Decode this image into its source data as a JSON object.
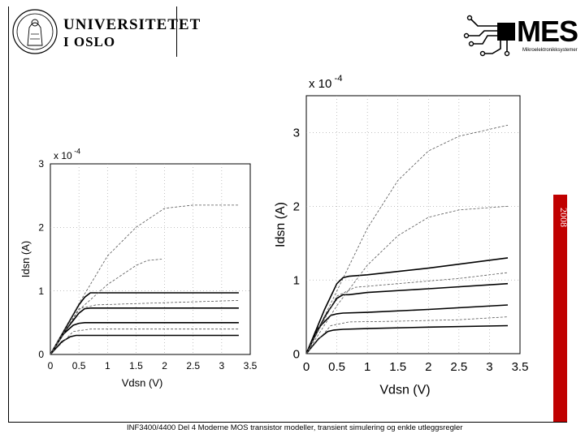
{
  "header": {
    "uio_line1": "UNIVERSITETET",
    "uio_line2": "I OSLO",
    "mes_logo": "MES",
    "mes_subtitle": "Mikroelektronikksystemer",
    "seal_icon": "university-seal-icon",
    "circuit_icon": "circuit-chip-icon"
  },
  "year": "2008",
  "footer_text": "INF3400/4400 Del 4 Moderne MOS transistor modeller, transient simulering og enkle utleggsregler",
  "colors": {
    "band": "#c00000",
    "curve": "#000000",
    "dashed": "#555555",
    "grid": "#9a9a9a"
  },
  "chart_data": [
    {
      "type": "line",
      "title": "",
      "xlabel": "Vdsn (V)",
      "ylabel": "Idsn (A)",
      "scale_label": "x 10",
      "scale_exponent": "-4",
      "xlim": [
        0,
        3.5
      ],
      "ylim": [
        0,
        3
      ],
      "xticks": [
        "0",
        "0.5",
        "1",
        "1.5",
        "2",
        "2.5",
        "3",
        "3.5"
      ],
      "yticks": [
        "0",
        "1",
        "2",
        "3"
      ],
      "grid": true,
      "series": [
        {
          "style": "solid",
          "x": [
            0,
            0.3,
            0.5,
            0.6,
            0.7,
            1.0,
            2.0,
            3.3
          ],
          "y": [
            0,
            0.47,
            0.78,
            0.9,
            0.97,
            0.97,
            0.97,
            0.97
          ]
        },
        {
          "style": "solid",
          "x": [
            0,
            0.3,
            0.5,
            0.6,
            0.7,
            1.0,
            2.0,
            3.3
          ],
          "y": [
            0,
            0.42,
            0.65,
            0.72,
            0.73,
            0.73,
            0.73,
            0.73
          ]
        },
        {
          "style": "solid",
          "x": [
            0,
            0.2,
            0.4,
            0.5,
            0.6,
            1.0,
            2.0,
            3.3
          ],
          "y": [
            0,
            0.3,
            0.46,
            0.49,
            0.5,
            0.5,
            0.5,
            0.5
          ]
        },
        {
          "style": "solid",
          "x": [
            0,
            0.2,
            0.35,
            0.45,
            0.6,
            1.0,
            2.0,
            3.3
          ],
          "y": [
            0,
            0.2,
            0.28,
            0.3,
            0.3,
            0.3,
            0.3,
            0.3
          ]
        },
        {
          "style": "dashed",
          "x": [
            0,
            0.5,
            1.0,
            1.5,
            2.0,
            2.5,
            3.3
          ],
          "y": [
            0,
            0.8,
            1.55,
            2.0,
            2.3,
            2.35,
            2.35
          ]
        },
        {
          "style": "dashed",
          "x": [
            0,
            0.5,
            1.0,
            1.5,
            1.7,
            1.95
          ],
          "y": [
            0,
            0.7,
            1.1,
            1.4,
            1.48,
            1.5
          ]
        },
        {
          "style": "dashed",
          "x": [
            0,
            0.5,
            0.8,
            1.5,
            3.3
          ],
          "y": [
            0,
            0.72,
            0.78,
            0.8,
            0.85
          ]
        },
        {
          "style": "dashed",
          "x": [
            0,
            0.4,
            0.7,
            1.5,
            3.3
          ],
          "y": [
            0,
            0.36,
            0.4,
            0.4,
            0.4
          ]
        }
      ]
    },
    {
      "type": "line",
      "title": "",
      "xlabel": "Vdsn (V)",
      "ylabel": "Idsn (A)",
      "scale_label": "x 10",
      "scale_exponent": "-4",
      "xlim": [
        0,
        3.5
      ],
      "ylim": [
        0,
        3.5
      ],
      "xticks": [
        "0",
        "0.5",
        "1",
        "1.5",
        "2",
        "2.5",
        "3",
        "3.5"
      ],
      "yticks": [
        "0",
        "1",
        "2",
        "3"
      ],
      "grid": true,
      "series": [
        {
          "style": "solid",
          "x": [
            0,
            0.3,
            0.5,
            0.6,
            0.7,
            1.0,
            2.0,
            3.3
          ],
          "y": [
            0,
            0.6,
            0.95,
            1.03,
            1.05,
            1.07,
            1.16,
            1.3
          ]
        },
        {
          "style": "solid",
          "x": [
            0,
            0.3,
            0.5,
            0.6,
            0.7,
            1.0,
            2.0,
            3.3
          ],
          "y": [
            0,
            0.5,
            0.75,
            0.8,
            0.8,
            0.83,
            0.88,
            0.95
          ]
        },
        {
          "style": "solid",
          "x": [
            0,
            0.2,
            0.4,
            0.5,
            0.6,
            1.0,
            2.0,
            3.3
          ],
          "y": [
            0,
            0.35,
            0.52,
            0.54,
            0.55,
            0.56,
            0.6,
            0.66
          ]
        },
        {
          "style": "solid",
          "x": [
            0,
            0.2,
            0.35,
            0.45,
            0.6,
            1.0,
            2.0,
            3.3
          ],
          "y": [
            0,
            0.2,
            0.3,
            0.32,
            0.33,
            0.34,
            0.36,
            0.38
          ]
        },
        {
          "style": "dashed",
          "x": [
            0,
            0.5,
            1.0,
            1.5,
            2.0,
            2.5,
            3.3
          ],
          "y": [
            0,
            0.85,
            1.7,
            2.35,
            2.75,
            2.95,
            3.1
          ]
        },
        {
          "style": "dashed",
          "x": [
            0,
            0.5,
            1.0,
            1.5,
            2.0,
            2.5,
            3.3
          ],
          "y": [
            0,
            0.65,
            1.2,
            1.6,
            1.85,
            1.95,
            2.0
          ]
        },
        {
          "style": "dashed",
          "x": [
            0,
            0.5,
            0.8,
            1.5,
            2.5,
            3.3
          ],
          "y": [
            0,
            0.78,
            0.9,
            0.95,
            1.02,
            1.1
          ]
        },
        {
          "style": "dashed",
          "x": [
            0,
            0.4,
            0.7,
            1.5,
            2.5,
            3.3
          ],
          "y": [
            0,
            0.38,
            0.43,
            0.44,
            0.46,
            0.5
          ]
        }
      ]
    }
  ]
}
